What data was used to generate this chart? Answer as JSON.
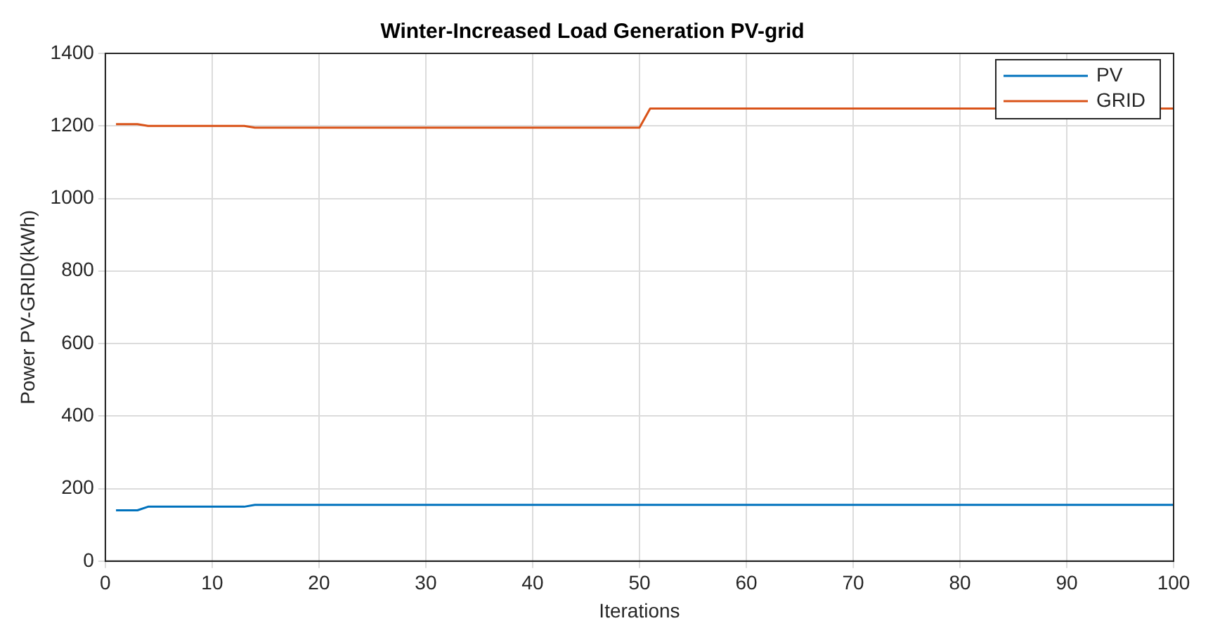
{
  "chart_data": {
    "type": "line",
    "title": "Winter-Increased Load Generation PV-grid",
    "xlabel": "Iterations",
    "ylabel": "Power PV-GRID(kWh)",
    "xlim": [
      0,
      100
    ],
    "xticks": [
      0,
      10,
      20,
      30,
      40,
      50,
      60,
      70,
      80,
      90,
      100
    ],
    "ylim": [
      0,
      1400
    ],
    "yticks": [
      0,
      200,
      400,
      600,
      800,
      1000,
      1200,
      1400
    ],
    "grid": true,
    "legend": "top right",
    "marker": "none",
    "line_style": "solid",
    "series": [
      {
        "name": "PV",
        "color": "#0072bd",
        "x": [
          1,
          3,
          4,
          13,
          14,
          100
        ],
        "values": [
          140,
          140,
          150,
          150,
          155,
          155
        ]
      },
      {
        "name": "GRID",
        "color": "#d95319",
        "x": [
          1,
          3,
          4,
          13,
          14,
          50,
          51,
          100
        ],
        "values": [
          1205,
          1205,
          1200,
          1200,
          1195,
          1195,
          1248,
          1248
        ]
      }
    ]
  }
}
